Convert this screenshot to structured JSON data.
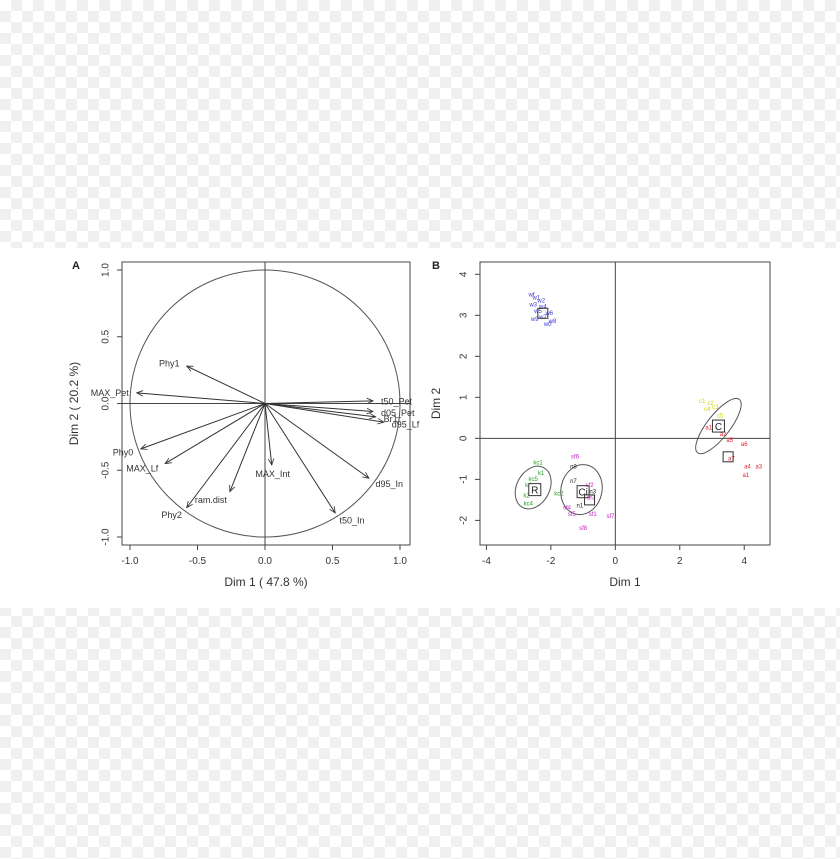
{
  "chart_data": [
    {
      "panel_label": "A",
      "type": "scatter",
      "subtype": "pca-variable-correlation-circle",
      "xlabel": "Dim 1 ( 47.8 %)",
      "ylabel": "Dim 2 ( 20.2 %)",
      "xlim": [
        -1.0,
        1.0
      ],
      "ylim": [
        -1.0,
        1.0
      ],
      "xticks": [
        "-1.0",
        "-0.5",
        "0.0",
        "0.5",
        "1.0"
      ],
      "yticks": [
        "-1.0",
        "-0.5",
        "0.0",
        "0.5",
        "1.0"
      ],
      "circle_radius": 1.0,
      "vectors": [
        {
          "label": "Phy1",
          "x": -0.58,
          "y": 0.28
        },
        {
          "label": "MAX_Pet",
          "x": -0.95,
          "y": 0.08
        },
        {
          "label": "t50_Pet",
          "x": 0.8,
          "y": 0.02
        },
        {
          "label": "d05_Pet",
          "x": 0.8,
          "y": -0.06
        },
        {
          "label": "Br1",
          "x": 0.82,
          "y": -0.1
        },
        {
          "label": "d95_Lf",
          "x": 0.88,
          "y": -0.14
        },
        {
          "label": "Phy0",
          "x": -0.92,
          "y": -0.34
        },
        {
          "label": "MAX_Lf",
          "x": -0.74,
          "y": -0.45
        },
        {
          "label": "MAX_Int",
          "x": 0.05,
          "y": -0.46
        },
        {
          "label": "ram.dist",
          "x": -0.26,
          "y": -0.66
        },
        {
          "label": "Phy2",
          "x": -0.58,
          "y": -0.78
        },
        {
          "label": "d95_In",
          "x": 0.77,
          "y": -0.56
        },
        {
          "label": "t50_In",
          "x": 0.52,
          "y": -0.82
        }
      ]
    },
    {
      "panel_label": "B",
      "type": "scatter",
      "subtype": "pca-individuals",
      "xlabel": "Dim 1",
      "ylabel": "Dim 2",
      "xlim": [
        -4.2,
        4.8
      ],
      "ylim": [
        -2.6,
        4.3
      ],
      "xticks": [
        "-4",
        "-2",
        "0",
        "2",
        "4"
      ],
      "yticks": [
        "-2",
        "-1",
        "0",
        "1",
        "2",
        "3",
        "4"
      ],
      "groups": [
        {
          "name": "",
          "center_label": "",
          "center": [
            -2.25,
            3.05
          ],
          "color": "#3b3bd6",
          "points": [
            {
              "label": "wf",
              "x": -2.6,
              "y": 3.5
            },
            {
              "label": "w1",
              "x": -2.45,
              "y": 3.42
            },
            {
              "label": "w2",
              "x": -2.3,
              "y": 3.35
            },
            {
              "label": "w3",
              "x": -2.55,
              "y": 3.25
            },
            {
              "label": "w4",
              "x": -2.25,
              "y": 3.2
            },
            {
              "label": "w5",
              "x": -2.4,
              "y": 3.1
            },
            {
              "label": "w6",
              "x": -2.05,
              "y": 3.05
            },
            {
              "label": "w7",
              "x": -2.25,
              "y": 2.95
            },
            {
              "label": "w8",
              "x": -1.95,
              "y": 2.85
            },
            {
              "label": "w9",
              "x": -2.5,
              "y": 2.9
            },
            {
              "label": "w0",
              "x": -2.1,
              "y": 2.78
            }
          ]
        },
        {
          "name": "",
          "center_label": "C",
          "center": [
            3.2,
            0.3
          ],
          "color": "#d4d400",
          "ellipse": {
            "cx": 3.2,
            "cy": 0.3,
            "rx": 1.05,
            "ry": 0.28,
            "angle_deg": -52
          },
          "points": [
            {
              "label": "c1",
              "x": 2.7,
              "y": 0.9
            },
            {
              "label": "c2",
              "x": 2.95,
              "y": 0.85
            },
            {
              "label": "c3",
              "x": 3.1,
              "y": 0.75
            },
            {
              "label": "c4",
              "x": 2.85,
              "y": 0.7
            },
            {
              "label": "c5",
              "x": 3.25,
              "y": 0.55
            }
          ]
        },
        {
          "name": "",
          "center_label": "",
          "center": [
            3.5,
            -0.45
          ],
          "color": "#e0202a",
          "points": [
            {
              "label": "a1",
              "x": 2.9,
              "y": 0.25
            },
            {
              "label": "a2",
              "x": 3.35,
              "y": 0.1
            },
            {
              "label": "a5",
              "x": 3.55,
              "y": -0.05
            },
            {
              "label": "a6",
              "x": 4.0,
              "y": -0.15
            },
            {
              "label": "a7",
              "x": 3.6,
              "y": -0.5
            },
            {
              "label": "a3",
              "x": 4.45,
              "y": -0.7
            },
            {
              "label": "a4",
              "x": 4.1,
              "y": -0.7
            },
            {
              "label": "a1",
              "x": 4.05,
              "y": -0.9
            }
          ]
        },
        {
          "name": "",
          "center_label": "R",
          "center": [
            -2.5,
            -1.25
          ],
          "color": "#22a022",
          "ellipse": {
            "cx": -2.55,
            "cy": -1.2,
            "rx": 0.7,
            "ry": 0.4,
            "angle_deg": -62
          },
          "points": [
            {
              "label": "kc1",
              "x": -2.4,
              "y": -0.6
            },
            {
              "label": "k1",
              "x": -2.3,
              "y": -0.85
            },
            {
              "label": "kc5",
              "x": -2.55,
              "y": -1.0
            },
            {
              "label": "k4",
              "x": -2.7,
              "y": -1.15
            },
            {
              "label": "k3",
              "x": -2.5,
              "y": -1.3
            },
            {
              "label": "k2",
              "x": -2.75,
              "y": -1.4
            },
            {
              "label": "kc4",
              "x": -2.7,
              "y": -1.6
            },
            {
              "label": "kc2",
              "x": -1.75,
              "y": -1.35
            }
          ]
        },
        {
          "name": "",
          "center_label": "Ci",
          "center": [
            -1.0,
            -1.3
          ],
          "color": "#222222",
          "ellipse": {
            "cx": -1.05,
            "cy": -1.25,
            "rx": 0.78,
            "ry": 0.5,
            "angle_deg": -78
          },
          "points": [
            {
              "label": "n8",
              "x": -1.3,
              "y": -0.7
            },
            {
              "label": "n7",
              "x": -1.3,
              "y": -1.05
            },
            {
              "label": "n6",
              "x": -1.05,
              "y": -1.35
            },
            {
              "label": "n1",
              "x": -1.1,
              "y": -1.65
            },
            {
              "label": "n3",
              "x": -0.7,
              "y": -1.3
            }
          ]
        },
        {
          "name": "",
          "center_label": "",
          "center": [
            -0.8,
            -1.5
          ],
          "color": "#c21fc2",
          "points": [
            {
              "label": "sf6",
              "x": -1.25,
              "y": -0.45
            },
            {
              "label": "sf2",
              "x": -0.8,
              "y": -1.15
            },
            {
              "label": "sf3",
              "x": -0.75,
              "y": -1.45
            },
            {
              "label": "sf4",
              "x": -1.5,
              "y": -1.7
            },
            {
              "label": "sf5",
              "x": -1.35,
              "y": -1.85
            },
            {
              "label": "sf1",
              "x": -0.7,
              "y": -1.85
            },
            {
              "label": "sf7",
              "x": -0.15,
              "y": -1.9
            },
            {
              "label": "sf8",
              "x": -1.0,
              "y": -2.2
            }
          ]
        }
      ]
    }
  ]
}
